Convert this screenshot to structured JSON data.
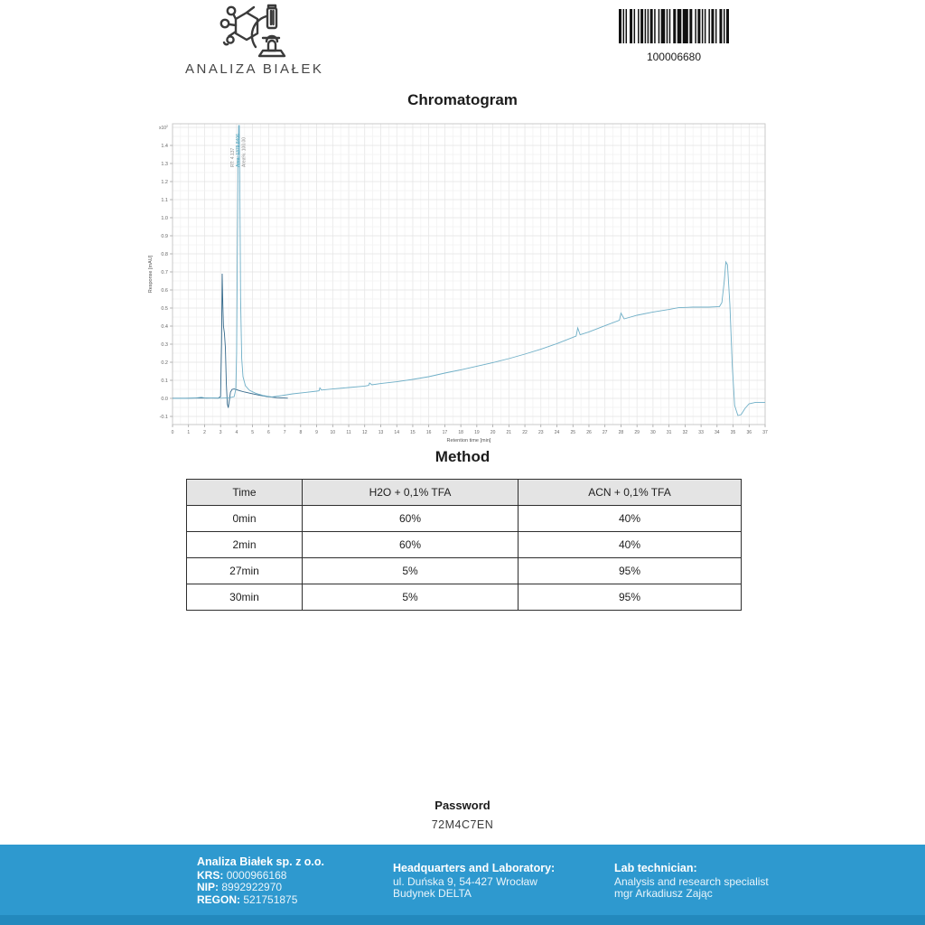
{
  "header": {
    "logo_text": "ANALIZA BIAŁEK",
    "barcode_value": "100006680"
  },
  "chart_data": {
    "type": "line",
    "title": "Chromatogram",
    "xlabel": "Retention time [min]",
    "ylabel": "Response [mAU]",
    "y_scale_label": "x10 2",
    "xlim": [
      0,
      37
    ],
    "ylim": [
      -0.145,
      1.52
    ],
    "x_major_step": 1,
    "x_minor_step": 0.5,
    "y_major_step": 0.1,
    "y_minor_step": 0.05,
    "grid": true,
    "legend": "none",
    "series": [
      {
        "name": "detector-channel-secondary",
        "color": "#33688a",
        "points": [
          [
            0,
            0.001
          ],
          [
            1,
            0.001
          ],
          [
            2,
            0.002
          ],
          [
            2.85,
            0.001
          ],
          [
            3.0,
            0.01
          ],
          [
            3.06,
            0.3
          ],
          [
            3.1,
            0.69
          ],
          [
            3.14,
            0.52
          ],
          [
            3.18,
            0.4
          ],
          [
            3.24,
            0.36
          ],
          [
            3.3,
            0.28
          ],
          [
            3.36,
            0.08
          ],
          [
            3.42,
            -0.03
          ],
          [
            3.48,
            -0.052
          ],
          [
            3.55,
            -0.01
          ],
          [
            3.62,
            0.035
          ],
          [
            3.72,
            0.05
          ],
          [
            3.85,
            0.052
          ],
          [
            4.0,
            0.048
          ],
          [
            4.2,
            0.042
          ],
          [
            4.5,
            0.035
          ],
          [
            4.9,
            0.027
          ],
          [
            5.4,
            0.018
          ],
          [
            5.9,
            0.01
          ],
          [
            6.5,
            0.004
          ],
          [
            7.2,
            0.001
          ]
        ]
      },
      {
        "name": "detector-channel-main",
        "color": "#6fafc7",
        "points": [
          [
            0,
            0
          ],
          [
            0.8,
            0
          ],
          [
            1.5,
            0.003
          ],
          [
            1.8,
            0.006
          ],
          [
            2.1,
            0.001
          ],
          [
            2.6,
            0.003
          ],
          [
            3.0,
            0.001
          ],
          [
            3.3,
            0.002
          ],
          [
            3.6,
            0.004
          ],
          [
            3.85,
            0.01
          ],
          [
            3.95,
            0.05
          ],
          [
            4.0,
            0.25
          ],
          [
            4.05,
            0.85
          ],
          [
            4.1,
            1.35
          ],
          [
            4.13,
            1.51
          ],
          [
            4.17,
            1.51
          ],
          [
            4.2,
            1.2
          ],
          [
            4.25,
            0.55
          ],
          [
            4.32,
            0.22
          ],
          [
            4.4,
            0.12
          ],
          [
            4.55,
            0.07
          ],
          [
            4.8,
            0.045
          ],
          [
            5.2,
            0.028
          ],
          [
            5.7,
            0.015
          ],
          [
            6.2,
            0.008
          ],
          [
            6.8,
            0.015
          ],
          [
            7.5,
            0.025
          ],
          [
            8.3,
            0.033
          ],
          [
            9.0,
            0.04
          ],
          [
            9.15,
            0.042
          ],
          [
            9.2,
            0.058
          ],
          [
            9.3,
            0.046
          ],
          [
            10,
            0.052
          ],
          [
            11,
            0.06
          ],
          [
            12,
            0.068
          ],
          [
            12.25,
            0.072
          ],
          [
            12.3,
            0.085
          ],
          [
            12.45,
            0.075
          ],
          [
            13,
            0.082
          ],
          [
            14,
            0.092
          ],
          [
            15,
            0.105
          ],
          [
            16,
            0.12
          ],
          [
            17,
            0.14
          ],
          [
            18,
            0.158
          ],
          [
            19,
            0.178
          ],
          [
            20,
            0.198
          ],
          [
            21,
            0.22
          ],
          [
            22,
            0.245
          ],
          [
            23,
            0.272
          ],
          [
            24,
            0.303
          ],
          [
            25,
            0.338
          ],
          [
            25.2,
            0.345
          ],
          [
            25.3,
            0.39
          ],
          [
            25.45,
            0.352
          ],
          [
            26,
            0.368
          ],
          [
            27,
            0.402
          ],
          [
            27.9,
            0.432
          ],
          [
            28.0,
            0.472
          ],
          [
            28.2,
            0.44
          ],
          [
            29,
            0.46
          ],
          [
            30,
            0.478
          ],
          [
            31,
            0.492
          ],
          [
            31.6,
            0.502
          ],
          [
            32.5,
            0.505
          ],
          [
            33.5,
            0.505
          ],
          [
            34.15,
            0.508
          ],
          [
            34.3,
            0.53
          ],
          [
            34.45,
            0.65
          ],
          [
            34.55,
            0.755
          ],
          [
            34.65,
            0.74
          ],
          [
            34.8,
            0.52
          ],
          [
            34.95,
            0.18
          ],
          [
            35.1,
            -0.04
          ],
          [
            35.3,
            -0.095
          ],
          [
            35.5,
            -0.09
          ],
          [
            35.75,
            -0.055
          ],
          [
            36.0,
            -0.03
          ],
          [
            36.4,
            -0.022
          ],
          [
            37,
            -0.022
          ]
        ]
      }
    ],
    "peak_annotation": {
      "x_min": 3.95,
      "lines": [
        {
          "text": "RT: 4.137",
          "color": "#8a8a8a"
        },
        {
          "text": "Area: 1379.8406",
          "color": "#3a9bb5"
        },
        {
          "text": "Area%: 100.00",
          "color": "#8a8a8a"
        }
      ]
    }
  },
  "method_table": {
    "title": "Method",
    "headers": [
      "Time",
      "H2O + 0,1% TFA",
      "ACN + 0,1% TFA"
    ],
    "rows": [
      [
        "0min",
        "60%",
        "40%"
      ],
      [
        "2min",
        "60%",
        "40%"
      ],
      [
        "27min",
        "5%",
        "95%"
      ],
      [
        "30min",
        "5%",
        "95%"
      ]
    ]
  },
  "password": {
    "label": "Password",
    "value": "72M4C7EN"
  },
  "footer": {
    "accent_color": "#2e99cf",
    "left": {
      "company": "Analiza Białek sp. z o.o.",
      "krs_label": "KRS:",
      "krs_value": "0000966168",
      "nip_label": "NIP:",
      "nip_value": "8992922970",
      "regon_label": "REGON:",
      "regon_value": "521751875"
    },
    "middle": {
      "title": "Headquarters and Laboratory:",
      "line1": "ul. Duńska 9, 54-427 Wrocław",
      "line2": "Budynek DELTA"
    },
    "right": {
      "title": "Lab technician:",
      "line1": "Analysis and research specialist",
      "line2": "mgr Arkadiusz Zając"
    }
  }
}
